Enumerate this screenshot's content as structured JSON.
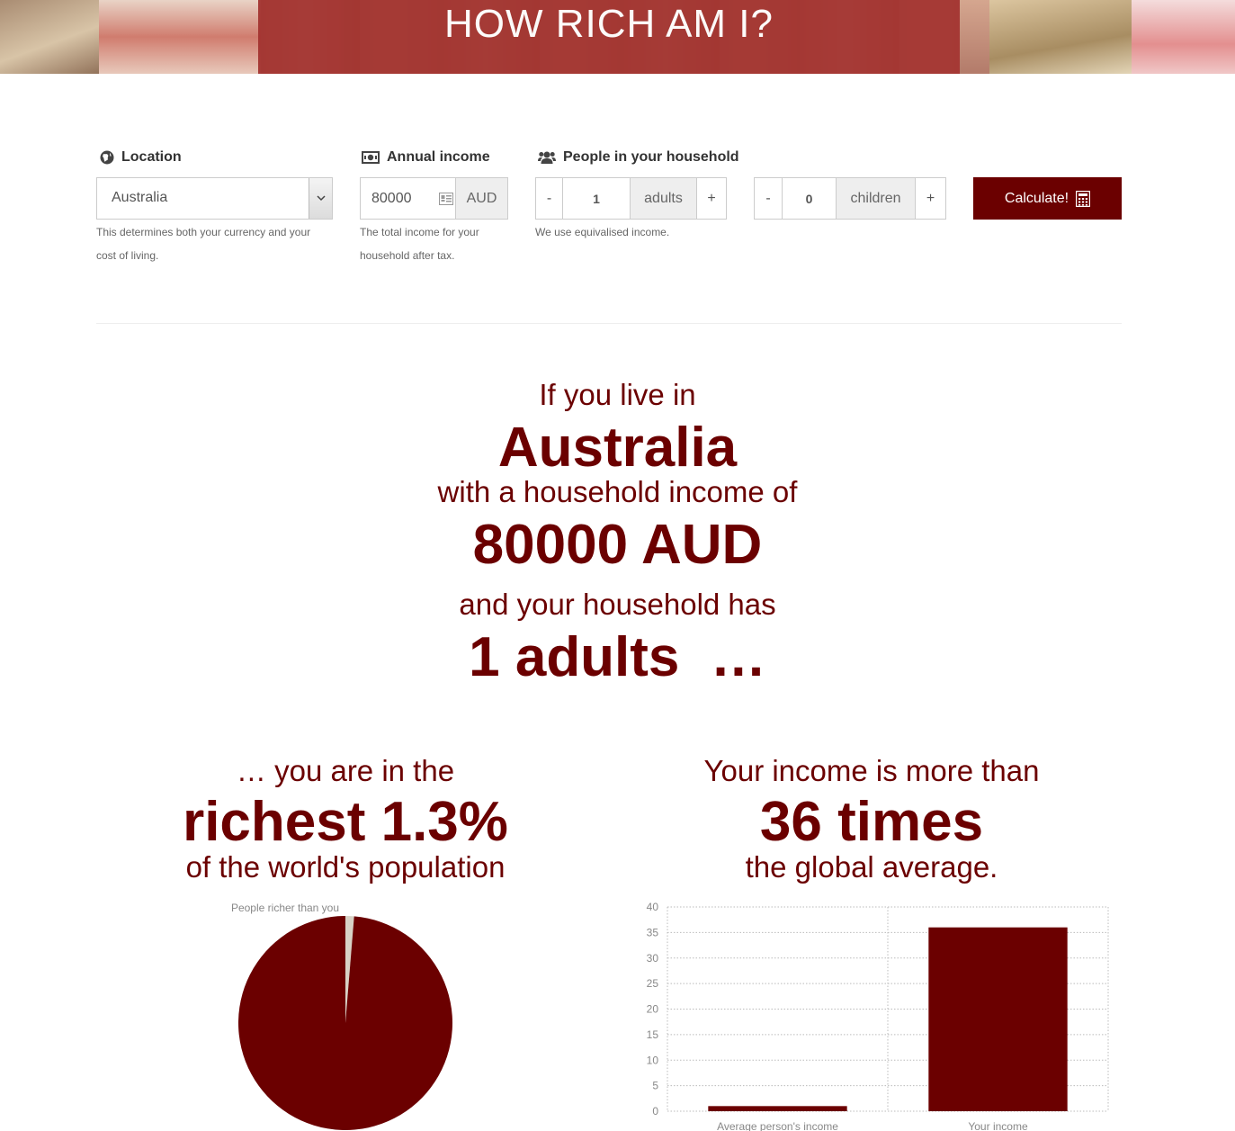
{
  "header": {
    "title": "HOW RICH AM I?"
  },
  "form": {
    "location": {
      "label": "Location",
      "value": "Australia",
      "help": [
        "This determines both your currency and your",
        "cost of living."
      ]
    },
    "income": {
      "label": "Annual income",
      "value": "80000",
      "currency": "AUD",
      "help": [
        "The total income for your",
        "household after tax."
      ]
    },
    "household": {
      "label": "People in your household",
      "minus": "-",
      "plus": "+",
      "adults_value": "1",
      "adults_label": "adults",
      "children_value": "0",
      "children_label": "children",
      "help": "We use equivalised income."
    },
    "calculate_label": "Calculate!"
  },
  "result": {
    "line1": "If you live in",
    "country": "Australia",
    "line2": "with a household income of",
    "income": "80000 AUD",
    "line3": "and your household has",
    "people": "1 adults  …"
  },
  "left_panel": {
    "line1": "… you are in the",
    "headline": "richest 1.3%",
    "line2": "of the world's population"
  },
  "right_panel": {
    "line1": "Your income is more than",
    "headline": "36 times",
    "line2": "the global average."
  },
  "colors": {
    "accent": "#6b0000",
    "pie_rest": "#d8d2c6",
    "banner": "#a2332f"
  },
  "chart_data": [
    {
      "type": "pie",
      "title": "",
      "slices": [
        {
          "name": "People richer than you",
          "value": 1.3
        },
        {
          "name": "",
          "value": 98.7
        }
      ],
      "labels_shown": [
        "People richer than you"
      ]
    },
    {
      "type": "bar",
      "categories": [
        "Average person's income",
        "Your income"
      ],
      "values": [
        1,
        36
      ],
      "ylim": [
        0,
        40
      ],
      "yticks": [
        0,
        5,
        10,
        15,
        20,
        25,
        30,
        35,
        40
      ],
      "grid": true
    }
  ]
}
